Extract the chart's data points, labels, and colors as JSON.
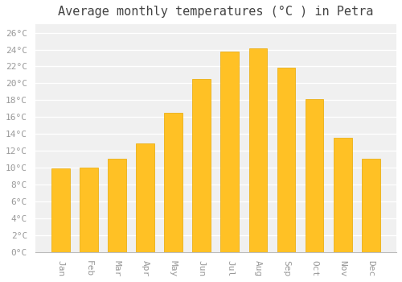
{
  "months": [
    "Jan",
    "Feb",
    "Mar",
    "Apr",
    "May",
    "Jun",
    "Jul",
    "Aug",
    "Sep",
    "Oct",
    "Nov",
    "Dec"
  ],
  "temperatures": [
    9.9,
    10.0,
    11.1,
    12.9,
    16.5,
    20.5,
    23.8,
    24.1,
    21.9,
    18.1,
    13.6,
    11.1
  ],
  "bar_color": "#FFC125",
  "bar_edge_color": "#E8A800",
  "title": "Average monthly temperatures (°C ) in Petra",
  "ylim": [
    0,
    27
  ],
  "ytick_step": 2,
  "background_color": "#ffffff",
  "plot_bg_color": "#f0f0f0",
  "grid_color": "#ffffff",
  "title_fontsize": 11,
  "tick_fontsize": 8,
  "tick_label_color": "#999999",
  "font_family": "monospace"
}
